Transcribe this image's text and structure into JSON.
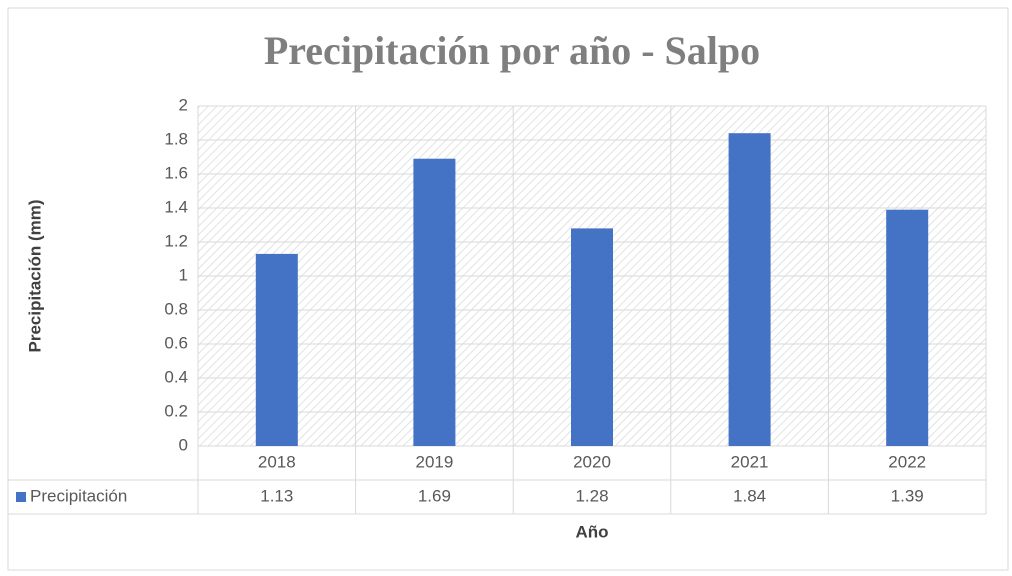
{
  "chart_data": {
    "type": "bar",
    "title": "Precipitación por año - Salpo",
    "x_label": "Año",
    "y_label": "Precipitación (mm)",
    "categories": [
      "2018",
      "2019",
      "2020",
      "2021",
      "2022"
    ],
    "series": [
      {
        "name": "Precipitación",
        "color": "#4472c4",
        "values": [
          1.13,
          1.69,
          1.28,
          1.84,
          1.39
        ]
      }
    ],
    "ylim": [
      0,
      2
    ],
    "yticks": [
      0,
      0.2,
      0.4,
      0.6,
      0.8,
      1,
      1.2,
      1.4,
      1.6,
      1.8,
      2
    ],
    "grid": true
  }
}
